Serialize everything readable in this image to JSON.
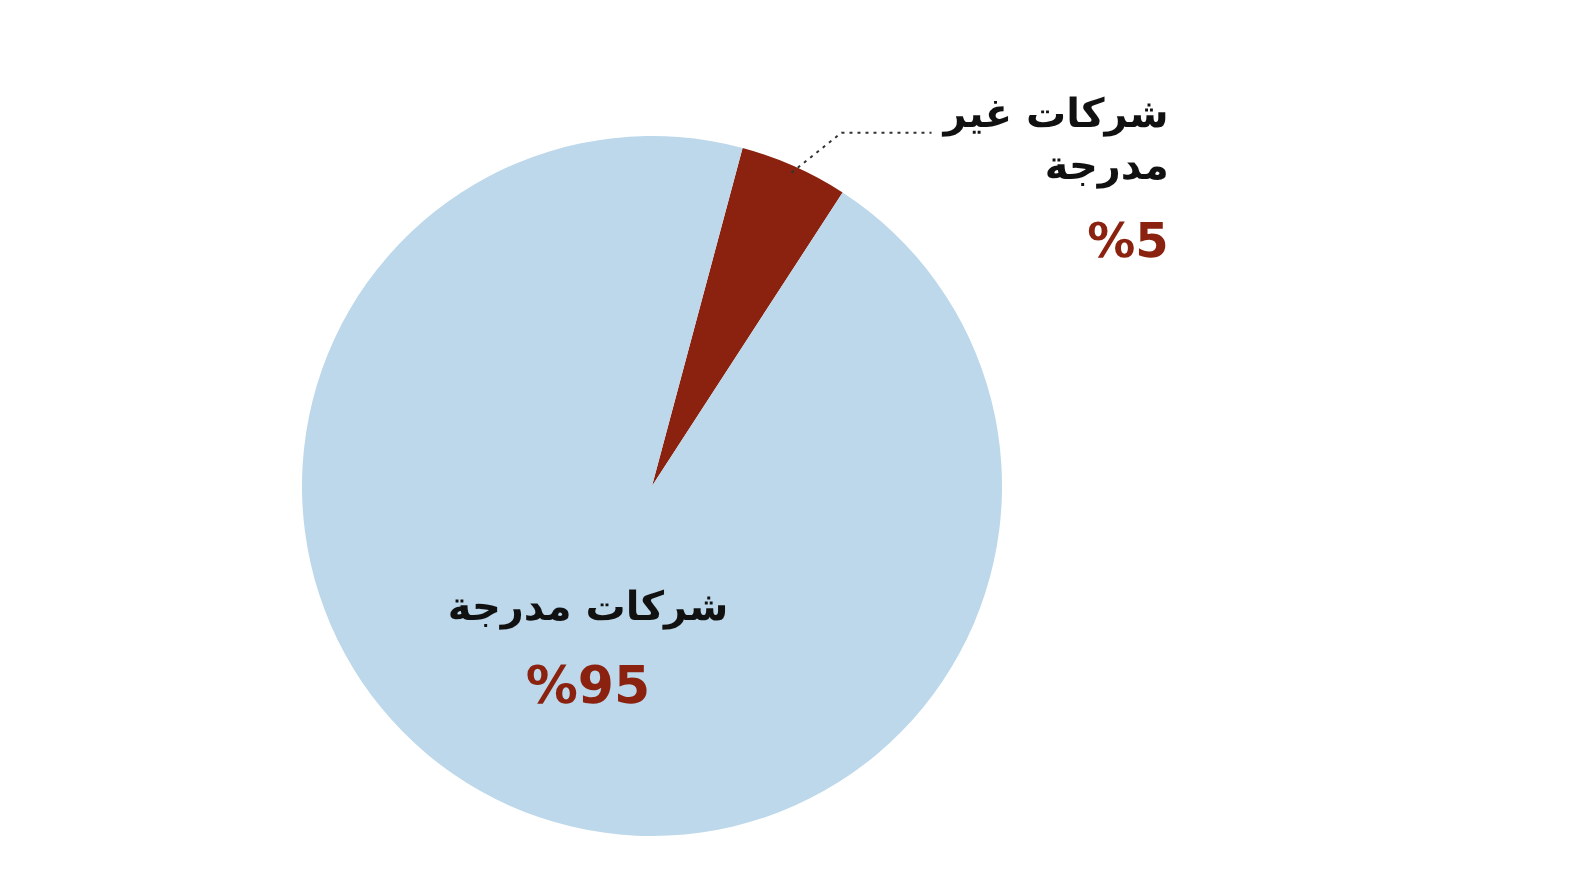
{
  "chart_data": {
    "type": "pie",
    "categories": [
      "شركات غير مدرجة",
      "شركات مدرجة"
    ],
    "values": [
      5,
      95
    ],
    "colors": [
      "#8b2210",
      "#bcd8ea"
    ],
    "value_labels": [
      "%5",
      "%95"
    ],
    "legend": false
  }
}
